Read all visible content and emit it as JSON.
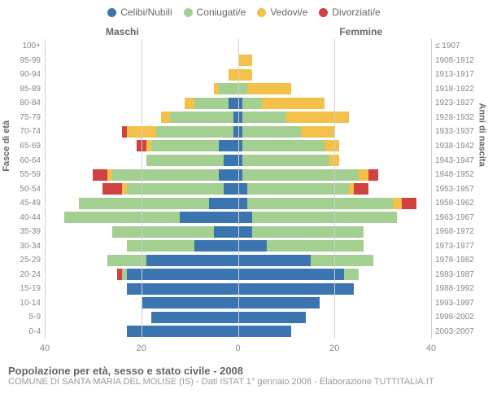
{
  "legend": [
    {
      "label": "Celibi/Nubili",
      "color": "#3b75af"
    },
    {
      "label": "Coniugati/e",
      "color": "#a3cf91"
    },
    {
      "label": "Vedovi/e",
      "color": "#f3c04a"
    },
    {
      "label": "Divorziati/e",
      "color": "#d24141"
    }
  ],
  "labels": {
    "male": "Maschi",
    "female": "Femmine",
    "left_axis": "Fasce di età",
    "right_axis": "Anni di nascita"
  },
  "x_axis": {
    "max": 40,
    "ticks": [
      -40,
      -20,
      0,
      20,
      40
    ],
    "tick_labels": [
      "40",
      "20",
      "0",
      "20",
      "40"
    ]
  },
  "seg_keys": [
    "celibi",
    "coniugati",
    "vedovi",
    "divorziati"
  ],
  "seg_colors": {
    "celibi": "#3b75af",
    "coniugati": "#a3cf91",
    "vedovi": "#f3c04a",
    "divorziati": "#d24141"
  },
  "rows": [
    {
      "age": "100+",
      "birth": "≤ 1907",
      "m": {
        "celibi": 0,
        "coniugati": 0,
        "vedovi": 0,
        "divorziati": 0
      },
      "f": {
        "celibi": 0,
        "coniugati": 0,
        "vedovi": 0,
        "divorziati": 0
      }
    },
    {
      "age": "95-99",
      "birth": "1908-1912",
      "m": {
        "celibi": 0,
        "coniugati": 0,
        "vedovi": 0,
        "divorziati": 0
      },
      "f": {
        "celibi": 0,
        "coniugati": 0,
        "vedovi": 3,
        "divorziati": 0
      }
    },
    {
      "age": "90-94",
      "birth": "1913-1917",
      "m": {
        "celibi": 0,
        "coniugati": 0,
        "vedovi": 2,
        "divorziati": 0
      },
      "f": {
        "celibi": 0,
        "coniugati": 0,
        "vedovi": 3,
        "divorziati": 0
      }
    },
    {
      "age": "85-89",
      "birth": "1918-1922",
      "m": {
        "celibi": 0,
        "coniugati": 4,
        "vedovi": 1,
        "divorziati": 0
      },
      "f": {
        "celibi": 0,
        "coniugati": 2,
        "vedovi": 9,
        "divorziati": 0
      }
    },
    {
      "age": "80-84",
      "birth": "1923-1927",
      "m": {
        "celibi": 2,
        "coniugati": 7,
        "vedovi": 2,
        "divorziati": 0
      },
      "f": {
        "celibi": 1,
        "coniugati": 4,
        "vedovi": 13,
        "divorziati": 0
      }
    },
    {
      "age": "75-79",
      "birth": "1928-1932",
      "m": {
        "celibi": 1,
        "coniugati": 13,
        "vedovi": 2,
        "divorziati": 0
      },
      "f": {
        "celibi": 1,
        "coniugati": 9,
        "vedovi": 13,
        "divorziati": 0
      }
    },
    {
      "age": "70-74",
      "birth": "1933-1937",
      "m": {
        "celibi": 1,
        "coniugati": 16,
        "vedovi": 6,
        "divorziati": 1
      },
      "f": {
        "celibi": 1,
        "coniugati": 12,
        "vedovi": 7,
        "divorziati": 0
      }
    },
    {
      "age": "65-69",
      "birth": "1938-1942",
      "m": {
        "celibi": 4,
        "coniugati": 14,
        "vedovi": 1,
        "divorziati": 2
      },
      "f": {
        "celibi": 1,
        "coniugati": 17,
        "vedovi": 3,
        "divorziati": 0
      }
    },
    {
      "age": "60-64",
      "birth": "1943-1947",
      "m": {
        "celibi": 3,
        "coniugati": 16,
        "vedovi": 0,
        "divorziati": 0
      },
      "f": {
        "celibi": 1,
        "coniugati": 18,
        "vedovi": 2,
        "divorziati": 0
      }
    },
    {
      "age": "55-59",
      "birth": "1948-1952",
      "m": {
        "celibi": 4,
        "coniugati": 22,
        "vedovi": 1,
        "divorziati": 3
      },
      "f": {
        "celibi": 1,
        "coniugati": 24,
        "vedovi": 2,
        "divorziati": 2
      }
    },
    {
      "age": "50-54",
      "birth": "1953-1957",
      "m": {
        "celibi": 3,
        "coniugati": 20,
        "vedovi": 1,
        "divorziati": 4
      },
      "f": {
        "celibi": 2,
        "coniugati": 21,
        "vedovi": 1,
        "divorziati": 3
      }
    },
    {
      "age": "45-49",
      "birth": "1958-1962",
      "m": {
        "celibi": 6,
        "coniugati": 27,
        "vedovi": 0,
        "divorziati": 0
      },
      "f": {
        "celibi": 2,
        "coniugati": 30,
        "vedovi": 2,
        "divorziati": 3
      }
    },
    {
      "age": "40-44",
      "birth": "1963-1967",
      "m": {
        "celibi": 12,
        "coniugati": 24,
        "vedovi": 0,
        "divorziati": 0
      },
      "f": {
        "celibi": 3,
        "coniugati": 30,
        "vedovi": 0,
        "divorziati": 0
      }
    },
    {
      "age": "35-39",
      "birth": "1968-1972",
      "m": {
        "celibi": 5,
        "coniugati": 21,
        "vedovi": 0,
        "divorziati": 0
      },
      "f": {
        "celibi": 3,
        "coniugati": 23,
        "vedovi": 0,
        "divorziati": 0
      }
    },
    {
      "age": "30-34",
      "birth": "1973-1977",
      "m": {
        "celibi": 9,
        "coniugati": 14,
        "vedovi": 0,
        "divorziati": 0
      },
      "f": {
        "celibi": 6,
        "coniugati": 20,
        "vedovi": 0,
        "divorziati": 0
      }
    },
    {
      "age": "25-29",
      "birth": "1978-1982",
      "m": {
        "celibi": 19,
        "coniugati": 8,
        "vedovi": 0,
        "divorziati": 0
      },
      "f": {
        "celibi": 15,
        "coniugati": 13,
        "vedovi": 0,
        "divorziati": 0
      }
    },
    {
      "age": "20-24",
      "birth": "1983-1987",
      "m": {
        "celibi": 23,
        "coniugati": 1,
        "vedovi": 0,
        "divorziati": 1
      },
      "f": {
        "celibi": 22,
        "coniugati": 3,
        "vedovi": 0,
        "divorziati": 0
      }
    },
    {
      "age": "15-19",
      "birth": "1988-1992",
      "m": {
        "celibi": 23,
        "coniugati": 0,
        "vedovi": 0,
        "divorziati": 0
      },
      "f": {
        "celibi": 24,
        "coniugati": 0,
        "vedovi": 0,
        "divorziati": 0
      }
    },
    {
      "age": "10-14",
      "birth": "1993-1997",
      "m": {
        "celibi": 20,
        "coniugati": 0,
        "vedovi": 0,
        "divorziati": 0
      },
      "f": {
        "celibi": 17,
        "coniugati": 0,
        "vedovi": 0,
        "divorziati": 0
      }
    },
    {
      "age": "5-9",
      "birth": "1998-2002",
      "m": {
        "celibi": 18,
        "coniugati": 0,
        "vedovi": 0,
        "divorziati": 0
      },
      "f": {
        "celibi": 14,
        "coniugati": 0,
        "vedovi": 0,
        "divorziati": 0
      }
    },
    {
      "age": "0-4",
      "birth": "2003-2007",
      "m": {
        "celibi": 23,
        "coniugati": 0,
        "vedovi": 0,
        "divorziati": 0
      },
      "f": {
        "celibi": 11,
        "coniugati": 0,
        "vedovi": 0,
        "divorziati": 0
      }
    }
  ],
  "footer": {
    "title": "Popolazione per età, sesso e stato civile - 2008",
    "subtitle": "COMUNE DI SANTA MARIA DEL MOLISE (IS) - Dati ISTAT 1° gennaio 2008 - Elaborazione TUTTITALIA.IT"
  }
}
